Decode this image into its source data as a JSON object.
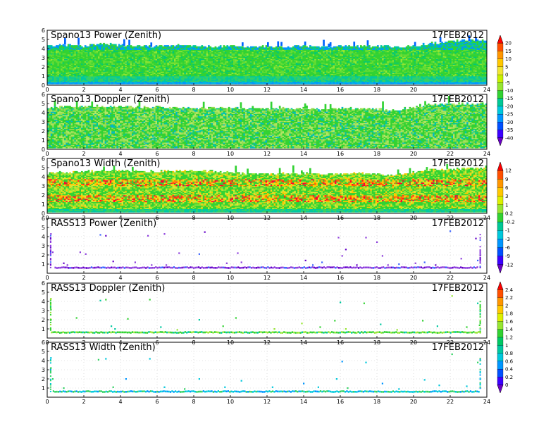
{
  "palettes": {
    "rainbow": [
      "#6b00c8",
      "#3c00ff",
      "#0050ff",
      "#0096ff",
      "#00c8ff",
      "#00e0c8",
      "#00c864",
      "#32e632",
      "#96f000",
      "#dcf000",
      "#ffd200",
      "#ffa000",
      "#ff6400",
      "#ff0000"
    ]
  },
  "chart_data": [
    {
      "type": "heatmap",
      "title": "Spano13 Power (Zenith)",
      "date": "17FEB2012",
      "x_ticks": [
        "0",
        "2",
        "4",
        "6",
        "8",
        "10",
        "12",
        "14",
        "16",
        "18",
        "20",
        "24"
      ],
      "x_tick_values": [
        0,
        2,
        4,
        6,
        8,
        10,
        12,
        14,
        16,
        18,
        20,
        24
      ],
      "y_ticks": [
        "0",
        "1",
        "2",
        "3",
        "4",
        "5",
        "6"
      ],
      "xlim": [
        0,
        24
      ],
      "ylim": [
        0,
        6
      ],
      "grid": true,
      "texture": "power",
      "colorbar_group": "cb1",
      "top_profile": [
        [
          0,
          4.3
        ],
        [
          1,
          4.4
        ],
        [
          2,
          4.3
        ],
        [
          3,
          4.5
        ],
        [
          4,
          4.4
        ],
        [
          5,
          4.3
        ],
        [
          6,
          4.3
        ],
        [
          7,
          4.4
        ],
        [
          8,
          4.3
        ],
        [
          9,
          4.2
        ],
        [
          10,
          4.3
        ],
        [
          11,
          4.2
        ],
        [
          12,
          4.3
        ],
        [
          13,
          4.2
        ],
        [
          14,
          4.3
        ],
        [
          15,
          4.2
        ],
        [
          16,
          4.3
        ],
        [
          17,
          4.2
        ],
        [
          18,
          4.3
        ],
        [
          19,
          4.2
        ],
        [
          20,
          4.3
        ],
        [
          21,
          4.6
        ],
        [
          22,
          4.8
        ],
        [
          23,
          4.9
        ],
        [
          24,
          4.9
        ]
      ]
    },
    {
      "type": "heatmap",
      "title": "Spano13 Doppler (Zenith)",
      "date": "17FEB2012",
      "x_ticks": [
        "0",
        "2",
        "4",
        "6",
        "8",
        "10",
        "12",
        "14",
        "16",
        "18",
        "20",
        "22",
        "24"
      ],
      "x_tick_values": [
        0,
        2,
        4,
        6,
        8,
        10,
        12,
        14,
        16,
        18,
        20,
        22,
        24
      ],
      "y_ticks": [
        "0",
        "1",
        "2",
        "3",
        "4",
        "5",
        "6"
      ],
      "xlim": [
        0,
        24
      ],
      "ylim": [
        0,
        6
      ],
      "grid": true,
      "texture": "doppler",
      "colorbar_group": "cb1",
      "top_profile": [
        [
          0,
          4.6
        ],
        [
          2,
          4.7
        ],
        [
          4,
          4.7
        ],
        [
          6,
          4.6
        ],
        [
          8,
          4.5
        ],
        [
          10,
          4.6
        ],
        [
          11,
          4.4
        ],
        [
          13,
          4.5
        ],
        [
          15,
          4.4
        ],
        [
          17,
          4.5
        ],
        [
          19,
          4.3
        ],
        [
          21,
          4.9
        ],
        [
          24,
          5.0
        ]
      ]
    },
    {
      "type": "heatmap",
      "title": "Spano13 Width (Zenith)",
      "date": "17FEB2012",
      "x_ticks": [
        "0",
        "2",
        "4",
        "6",
        "8",
        "10",
        "12",
        "14",
        "16",
        "18",
        "20",
        "22",
        "24"
      ],
      "x_tick_values": [
        0,
        2,
        4,
        6,
        8,
        10,
        12,
        14,
        16,
        18,
        20,
        22,
        24
      ],
      "y_ticks": [
        "0",
        "1",
        "2",
        "3",
        "4",
        "5",
        "6"
      ],
      "xlim": [
        0,
        24
      ],
      "ylim": [
        0,
        6
      ],
      "grid": true,
      "texture": "width",
      "colorbar_group": "cb2",
      "top_profile": [
        [
          0,
          4.4
        ],
        [
          2,
          4.6
        ],
        [
          4,
          4.7
        ],
        [
          6,
          4.6
        ],
        [
          8,
          4.7
        ],
        [
          10,
          4.5
        ],
        [
          11,
          4.3
        ],
        [
          13,
          4.4
        ],
        [
          15,
          4.3
        ],
        [
          17,
          4.4
        ],
        [
          19,
          4.2
        ],
        [
          21,
          4.8
        ],
        [
          24,
          5.0
        ]
      ]
    },
    {
      "type": "scatter",
      "title": "RASS13 Power (Zenith)",
      "date": "17FEB2012",
      "x_ticks": [
        "0",
        "2",
        "4",
        "6",
        "8",
        "10",
        "12",
        "14",
        "16",
        "18",
        "20",
        "22",
        "24"
      ],
      "x_tick_values": [
        0,
        2,
        4,
        6,
        8,
        10,
        12,
        14,
        16,
        18,
        20,
        22,
        24
      ],
      "y_ticks": [
        "1",
        "2",
        "3",
        "4",
        "5",
        "6"
      ],
      "y_tick_values": [
        1,
        2,
        3,
        4,
        5,
        6
      ],
      "xlim": [
        0,
        24
      ],
      "ylim": [
        0,
        6
      ],
      "grid": true,
      "band_y": 0.6,
      "band_xrange": [
        0.4,
        23.5
      ],
      "band_palette": "purple",
      "colorbar_group": "cb2",
      "points": [
        [
          0.2,
          4.3
        ],
        [
          0.3,
          2.3
        ],
        [
          0.9,
          1.1
        ],
        [
          1.1,
          0.9
        ],
        [
          1.8,
          2.3
        ],
        [
          2.1,
          2.1
        ],
        [
          2.9,
          4.2
        ],
        [
          3.2,
          4.1
        ],
        [
          3.6,
          1.3
        ],
        [
          4.8,
          1.2
        ],
        [
          5.5,
          4.1
        ],
        [
          5.7,
          0.9
        ],
        [
          6.4,
          4.3
        ],
        [
          6.5,
          0.9
        ],
        [
          7.2,
          2.2
        ],
        [
          8.3,
          2.1
        ],
        [
          8.6,
          4.5
        ],
        [
          9.8,
          1.1
        ],
        [
          10.4,
          2.2
        ],
        [
          10.6,
          1.2
        ],
        [
          14.1,
          1.4
        ],
        [
          14.5,
          0.9
        ],
        [
          15.0,
          1.2
        ],
        [
          15.9,
          3.9
        ],
        [
          16.1,
          1.9
        ],
        [
          16.3,
          2.6
        ],
        [
          16.9,
          0.9
        ],
        [
          17.4,
          3.9
        ],
        [
          18.0,
          3.4
        ],
        [
          18.3,
          1.9
        ],
        [
          18.6,
          0.9
        ],
        [
          19.2,
          1.0
        ],
        [
          20.1,
          1.1
        ],
        [
          20.6,
          1.2
        ],
        [
          21.2,
          0.9
        ],
        [
          22.0,
          4.6
        ],
        [
          22.6,
          1.6
        ],
        [
          23.4,
          3.8
        ],
        [
          23.5,
          1.4
        ]
      ]
    },
    {
      "type": "scatter",
      "title": "RASS13 Doppler (Zenith)",
      "date": "17FEB2012",
      "x_ticks": [
        "0",
        "2",
        "4",
        "6",
        "8",
        "10",
        "12",
        "14",
        "16",
        "18",
        "20",
        "22",
        "24"
      ],
      "x_tick_values": [
        0,
        2,
        4,
        6,
        8,
        10,
        12,
        14,
        16,
        18,
        20,
        22,
        24
      ],
      "y_ticks": [
        "1",
        "2",
        "3",
        "4",
        "5",
        "6"
      ],
      "y_tick_values": [
        1,
        2,
        3,
        4,
        5,
        6
      ],
      "xlim": [
        0,
        24
      ],
      "ylim": [
        0,
        6
      ],
      "grid": true,
      "band_y": 0.6,
      "band_xrange": [
        0.2,
        23.6
      ],
      "band_palette": "green",
      "colorbar_group": "cb3",
      "points": [
        [
          0.2,
          4.3
        ],
        [
          0.2,
          3.1
        ],
        [
          0.2,
          2.0
        ],
        [
          1.6,
          2.2
        ],
        [
          2.9,
          4.1
        ],
        [
          3.2,
          4.2
        ],
        [
          3.5,
          1.3
        ],
        [
          3.7,
          1.0
        ],
        [
          4.4,
          2.1
        ],
        [
          5.6,
          4.2
        ],
        [
          6.2,
          1.2
        ],
        [
          7.1,
          0.9
        ],
        [
          8.3,
          2.0
        ],
        [
          9.6,
          1.3
        ],
        [
          10.3,
          2.2
        ],
        [
          12.4,
          1.0
        ],
        [
          13.9,
          1.6
        ],
        [
          14.9,
          1.2
        ],
        [
          15.7,
          1.9
        ],
        [
          16.0,
          3.9
        ],
        [
          16.3,
          1.0
        ],
        [
          17.3,
          3.8
        ],
        [
          18.2,
          1.5
        ],
        [
          19.1,
          0.9
        ],
        [
          20.5,
          1.9
        ],
        [
          21.3,
          1.3
        ],
        [
          22.1,
          4.6
        ],
        [
          22.9,
          1.2
        ],
        [
          23.5,
          3.8
        ],
        [
          23.6,
          1.4
        ]
      ]
    },
    {
      "type": "scatter",
      "title": "RASS13 Width (Zenith)",
      "date": "17FEB2012",
      "x_ticks": [
        "0",
        "2",
        "4",
        "6",
        "8",
        "10",
        "12",
        "14",
        "16",
        "18",
        "20",
        "22",
        "24"
      ],
      "x_tick_values": [
        0,
        2,
        4,
        6,
        8,
        10,
        12,
        14,
        16,
        18,
        20,
        22,
        24
      ],
      "y_ticks": [
        "1",
        "2",
        "3",
        "4",
        "5",
        "6"
      ],
      "y_tick_values": [
        1,
        2,
        3,
        4,
        5,
        6
      ],
      "xlim": [
        0,
        24
      ],
      "ylim": [
        0,
        6
      ],
      "grid": true,
      "band_y": 0.6,
      "band_xrange": [
        0.3,
        23.6
      ],
      "band_palette": "blue",
      "colorbar_group": "cb3",
      "points": [
        [
          0.2,
          4.3
        ],
        [
          0.2,
          3.2
        ],
        [
          0.3,
          2.0
        ],
        [
          0.9,
          1.0
        ],
        [
          2.8,
          4.1
        ],
        [
          3.2,
          4.2
        ],
        [
          3.6,
          1.1
        ],
        [
          4.3,
          2.0
        ],
        [
          5.6,
          4.2
        ],
        [
          6.4,
          1.1
        ],
        [
          7.5,
          0.9
        ],
        [
          8.3,
          2.0
        ],
        [
          9.7,
          1.1
        ],
        [
          10.6,
          1.8
        ],
        [
          12.3,
          1.1
        ],
        [
          14.0,
          1.5
        ],
        [
          14.8,
          1.1
        ],
        [
          15.8,
          2.0
        ],
        [
          16.1,
          3.9
        ],
        [
          16.4,
          1.0
        ],
        [
          17.4,
          3.8
        ],
        [
          18.3,
          1.5
        ],
        [
          19.2,
          0.9
        ],
        [
          20.6,
          1.9
        ],
        [
          21.4,
          1.3
        ],
        [
          22.1,
          4.7
        ],
        [
          22.9,
          1.2
        ],
        [
          23.5,
          3.8
        ]
      ]
    }
  ],
  "colorbars": [
    {
      "id": "cb1",
      "labels": [
        "20",
        "15",
        "10",
        "5",
        "0",
        "-5",
        "-10",
        "-15",
        "-20",
        "-25",
        "-30",
        "-35",
        "-40"
      ],
      "colors": [
        "#ff0000",
        "#ff5000",
        "#ff9600",
        "#ffc800",
        "#f0e632",
        "#c8f000",
        "#96e632",
        "#32d232",
        "#00c896",
        "#00c8dc",
        "#0096ff",
        "#0050ff",
        "#3c00ff",
        "#6b00c8"
      ]
    },
    {
      "id": "cb2",
      "labels": [
        "12",
        "9",
        "6",
        "3",
        "1",
        "0.2",
        "-0.2",
        "-1",
        "-3",
        "-6",
        "-9",
        "-12"
      ],
      "colors": [
        "#ff0000",
        "#ff5000",
        "#ff9600",
        "#ffc800",
        "#dcf000",
        "#96e632",
        "#32d232",
        "#00c896",
        "#00c8dc",
        "#0096ff",
        "#0050ff",
        "#3c00ff",
        "#6b00c8"
      ]
    },
    {
      "id": "cb3",
      "labels": [
        "2.4",
        "2.2",
        "2",
        "1.8",
        "1.6",
        "1.4",
        "1.2",
        "1",
        "0.8",
        "0.6",
        "0.4",
        "0.2",
        "0"
      ],
      "colors": [
        "#ff0000",
        "#ff5000",
        "#ff9600",
        "#ffc800",
        "#dcf000",
        "#96e632",
        "#32d232",
        "#00c864",
        "#00c8a0",
        "#00c8dc",
        "#0096ff",
        "#0050ff",
        "#3c00ff",
        "#6b00c8"
      ]
    }
  ]
}
